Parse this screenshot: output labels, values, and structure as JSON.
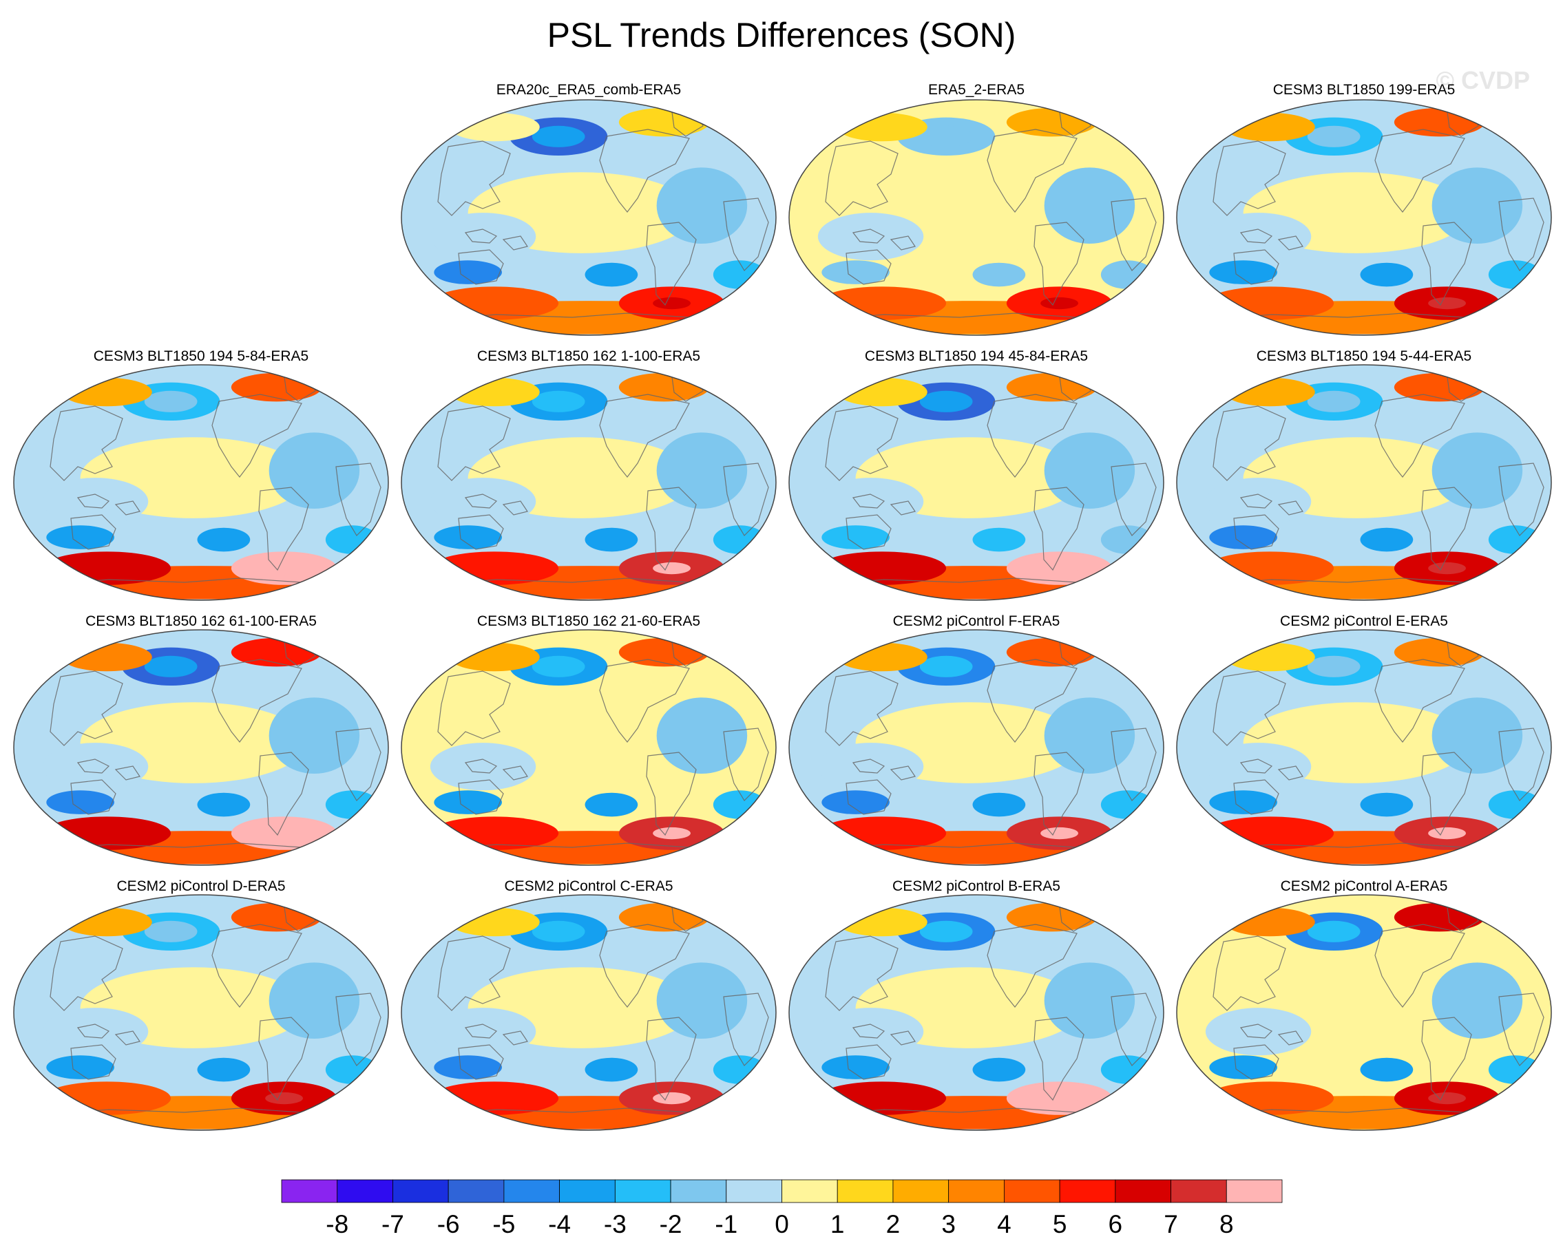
{
  "watermark": "© CVDP",
  "chart_data": {
    "type": "contour-map-grid",
    "title": "PSL Trends Differences (SON)",
    "projection": "Robinson (Pacific-centered)",
    "variable": "PSL trend difference",
    "panels": [
      {
        "title": "ERA20c_ERA5_comb-ERA5",
        "south_max": 5,
        "south_min": -5,
        "north_max": 1,
        "north_min": -6,
        "tropics_mean": -1
      },
      {
        "title": "ERA5_2-ERA5",
        "south_max": 5,
        "south_min": -2,
        "north_max": 2,
        "north_min": -2,
        "tropics_mean": 1
      },
      {
        "title": "CESM3 BLT1850 199-ERA5",
        "south_max": 6,
        "south_min": -4,
        "north_max": 4,
        "north_min": -3,
        "tropics_mean": 0
      },
      {
        "title": "CESM3 BLT1850 194 5-84-ERA5",
        "south_max": 8,
        "south_min": -4,
        "north_max": 4,
        "north_min": -3,
        "tropics_mean": 0
      },
      {
        "title": "CESM3 BLT1850 162 1-100-ERA5",
        "south_max": 7,
        "south_min": -4,
        "north_max": 3,
        "north_min": -4,
        "tropics_mean": 0
      },
      {
        "title": "CESM3 BLT1850 194 45-84-ERA5",
        "south_max": 8,
        "south_min": -3,
        "north_max": 3,
        "north_min": -6,
        "tropics_mean": 0
      },
      {
        "title": "CESM3 BLT1850 194 5-44-ERA5",
        "south_max": 6,
        "south_min": -5,
        "north_max": 4,
        "north_min": -3,
        "tropics_mean": 0
      },
      {
        "title": "CESM3 BLT1850 162 61-100-ERA5",
        "south_max": 8,
        "south_min": -5,
        "north_max": 5,
        "north_min": -6,
        "tropics_mean": 0
      },
      {
        "title": "CESM3 BLT1850 162 21-60-ERA5",
        "south_max": 7,
        "south_min": -4,
        "north_max": 4,
        "north_min": -4,
        "tropics_mean": 1
      },
      {
        "title": "CESM2 piControl F-ERA5",
        "south_max": 7,
        "south_min": -5,
        "north_max": 4,
        "north_min": -5,
        "tropics_mean": 0
      },
      {
        "title": "CESM2 piControl E-ERA5",
        "south_max": 7,
        "south_min": -4,
        "north_max": 3,
        "north_min": -3,
        "tropics_mean": 0
      },
      {
        "title": "CESM2 piControl D-ERA5",
        "south_max": 6,
        "south_min": -4,
        "north_max": 4,
        "north_min": -3,
        "tropics_mean": 0
      },
      {
        "title": "CESM2 piControl C-ERA5",
        "south_max": 7,
        "south_min": -5,
        "north_max": 3,
        "north_min": -4,
        "tropics_mean": 0
      },
      {
        "title": "CESM2 piControl B-ERA5",
        "south_max": 8,
        "south_min": -4,
        "north_max": 3,
        "north_min": -5,
        "tropics_mean": 0
      },
      {
        "title": "CESM2 piControl A-ERA5",
        "south_max": 6,
        "south_min": -4,
        "north_max": 6,
        "north_min": -5,
        "tropics_mean": 1
      }
    ],
    "colorbar": {
      "levels": [
        -8,
        -7,
        -6,
        -5,
        -4,
        -3,
        -2,
        -1,
        0,
        1,
        2,
        3,
        4,
        5,
        6,
        7,
        8
      ],
      "tick_labels": [
        "-8",
        "-7",
        "-6",
        "-5",
        "-4",
        "-3",
        "-2",
        "-1",
        "0",
        "1",
        "2",
        "3",
        "4",
        "5",
        "6",
        "7",
        "8"
      ],
      "colors": [
        "#8a24f0",
        "#2f0cf0",
        "#1a2fe0",
        "#2f64d8",
        "#2486ec",
        "#15a0f0",
        "#24bef8",
        "#7ec7ee",
        "#b5ddf3",
        "#fff59a",
        "#ffd71c",
        "#ffac00",
        "#ff8400",
        "#ff5500",
        "#ff1500",
        "#d70000",
        "#d52d2d",
        "#ffb4b4"
      ]
    }
  }
}
